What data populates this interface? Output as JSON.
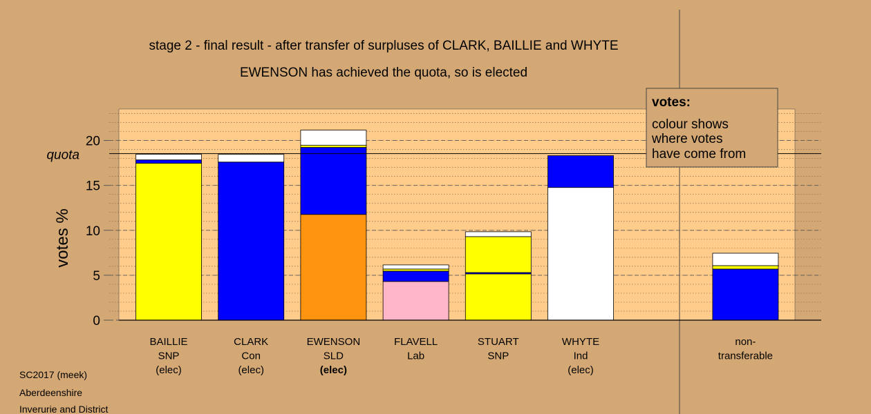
{
  "chart_data": {
    "type": "stacked_bar",
    "title": "stage 2 - final result - after transfer of surpluses of CLARK, BAILLIE and WHYTE",
    "subtitle": "EWENSON has achieved the quota, so is elected",
    "y_label": "votes %",
    "categories": [
      [
        "BAILLIE",
        "SNP",
        "(elec)"
      ],
      [
        "CLARK",
        "Con",
        "(elec)"
      ],
      [
        "EWENSON",
        "SLD",
        "(elec)"
      ],
      [
        "FLAVELL",
        "Lab"
      ],
      [
        "STUART",
        "SNP"
      ],
      [
        "WHYTE",
        "Ind",
        "(elec)"
      ],
      null,
      [
        "non-",
        "transferable"
      ]
    ],
    "bold_category": 2,
    "series": [
      {
        "colors": [
          "#ffff00",
          "#0000ff",
          "#ff9410",
          "#ffb6c8",
          "#ffff00",
          "#ffffff",
          null,
          null
        ],
        "values": [
          17.46,
          17.6,
          11.77,
          4.31,
          5.15,
          14.77,
          null,
          null
        ]
      },
      {
        "color": "#0000ff",
        "values": [
          0.38,
          0,
          7.46,
          1.15,
          0.15,
          3.54,
          null,
          5.69
        ]
      },
      {
        "color": "#ffff00",
        "values": [
          0,
          0,
          0.23,
          0.23,
          4.0,
          0,
          null,
          0.38
        ]
      },
      {
        "color": "#ffffff",
        "values": [
          0.62,
          0.85,
          1.69,
          0.46,
          0.54,
          0,
          null,
          1.38
        ]
      }
    ],
    "ylim": [
      0,
      23.5
    ],
    "yticks": [
      0,
      5,
      10,
      15,
      20
    ],
    "minor_ystep": 1,
    "quota": {
      "label": "quota",
      "value": 18.54
    },
    "annotation": {
      "title": "votes:",
      "lines": [
        "colour shows",
        "where votes",
        "have come from"
      ]
    },
    "footer": [
      "SC2017 (meek)",
      "Aberdeenshire",
      "Inverurie and District"
    ]
  }
}
